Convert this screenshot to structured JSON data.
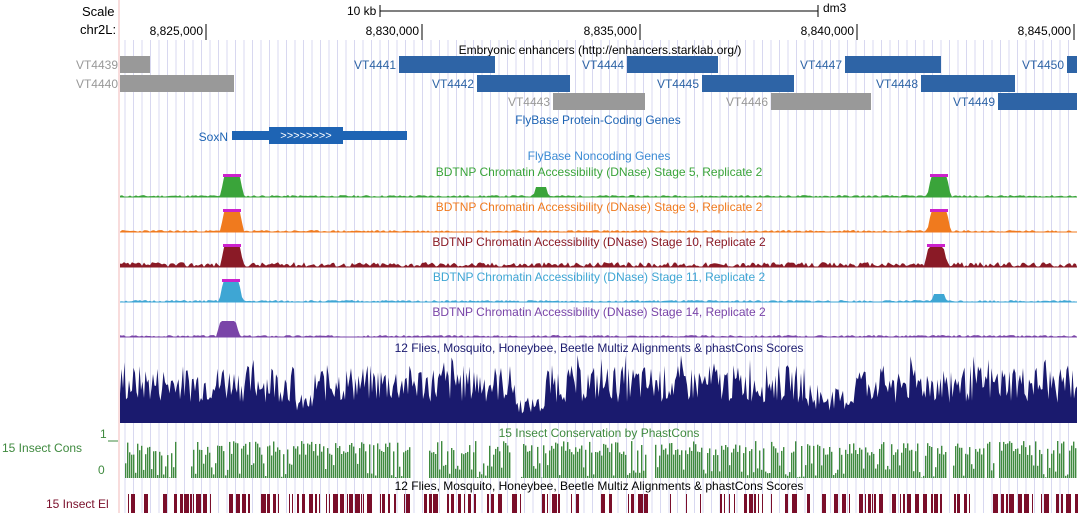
{
  "scale_bar": {
    "label": "Scale",
    "size_label": "10 kb",
    "assembly": "dm3"
  },
  "chromosome": {
    "label": "chr2L:",
    "ticks": [
      "8,825,000",
      "8,830,000",
      "8,835,000",
      "8,840,000",
      "8,845,000"
    ]
  },
  "enhancer_track": {
    "title": "Embryonic enhancers (http://enhancers.starklab.org/)",
    "features": [
      {
        "name": "VT4439",
        "active": false
      },
      {
        "name": "VT4440",
        "active": false
      },
      {
        "name": "VT4441",
        "active": true
      },
      {
        "name": "VT4442",
        "active": true
      },
      {
        "name": "VT4443",
        "active": false
      },
      {
        "name": "VT4444",
        "active": true
      },
      {
        "name": "VT4445",
        "active": true
      },
      {
        "name": "VT4446",
        "active": false
      },
      {
        "name": "VT4447",
        "active": true
      },
      {
        "name": "VT4448",
        "active": true
      },
      {
        "name": "VT4449",
        "active": true
      },
      {
        "name": "VT4450",
        "active": true
      }
    ]
  },
  "gene_track": {
    "title": "FlyBase Protein-Coding Genes",
    "gene": "SoxN",
    "strand_glyph": ">>>>>>>>"
  },
  "noncoding_track": {
    "title": "FlyBase Noncoding Genes"
  },
  "dnase_tracks": [
    {
      "title": "BDTNP Chromatin Accessibility (DNase) Stage 5, Replicate 2",
      "color": "#3aa43a"
    },
    {
      "title": "BDTNP Chromatin Accessibility (DNase) Stage 9, Replicate 2",
      "color": "#f07a1e"
    },
    {
      "title": "BDTNP Chromatin Accessibility (DNase) Stage 10, Replicate 2",
      "color": "#8a1a26"
    },
    {
      "title": "BDTNP Chromatin Accessibility (DNase) Stage 11, Replicate 2",
      "color": "#3ea6d4"
    },
    {
      "title": "BDTNP Chromatin Accessibility (DNase) Stage 14, Replicate 2",
      "color": "#7a45a8"
    }
  ],
  "multiz_track": {
    "title": "12 Flies, Mosquito, Honeybee, Beetle Multiz Alignments & phastCons Scores",
    "color": "#1a1a6e"
  },
  "insect_cons_track": {
    "side_label": "15 Insect Cons",
    "title": "15 Insect Conservation by PhastCons",
    "scale_max": "1",
    "scale_min": "0",
    "color": "#3f8a3f"
  },
  "insect_el_track": {
    "side_label": "15 Insect El",
    "title": "12 Flies, Mosquito, Honeybee, Beetle Multiz Alignments & phastCons Scores",
    "color": "#7a0e2a"
  },
  "colors": {
    "enhancer_active": "#2e64a6",
    "enhancer_inactive": "#999999",
    "gene": "#1e64b4",
    "guide": "#d8d8f0",
    "peak_cap": "#cc22cc"
  }
}
